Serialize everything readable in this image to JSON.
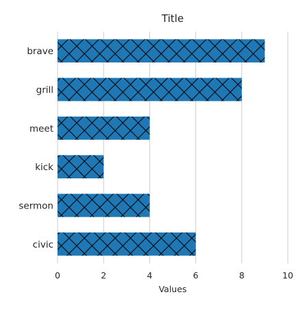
{
  "chart_data": {
    "type": "bar",
    "orientation": "horizontal",
    "title": "Title",
    "xlabel": "Values",
    "ylabel": "",
    "categories": [
      "brave",
      "grill",
      "meet",
      "kick",
      "sermon",
      "civic"
    ],
    "values": [
      9,
      8,
      4,
      2,
      4,
      6
    ],
    "xlim": [
      0,
      10
    ],
    "xticks": [
      "0",
      "2",
      "4",
      "6",
      "8",
      "10"
    ],
    "grid": "vertical",
    "legend": "none",
    "bar_color": "#1f77b4",
    "hatch": "crosshatch",
    "hatch_color": "#000000"
  }
}
